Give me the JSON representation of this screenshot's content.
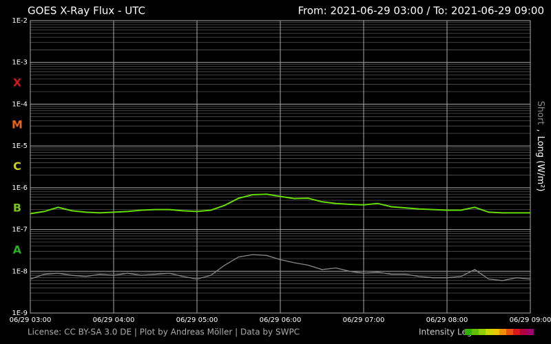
{
  "chart_data": {
    "type": "line",
    "title": "GOES X-Ray Flux - UTC",
    "subtitle": "From: 2021-06-29 03:00  /  To: 2021-06-29 09:00",
    "log_scale": true,
    "grid": true,
    "ylim": [
      1e-09,
      0.01
    ],
    "yticks": [
      {
        "value": 0.01,
        "label": "1E-2"
      },
      {
        "value": 0.001,
        "label": "1E-3"
      },
      {
        "value": 0.0001,
        "label": "1E-4"
      },
      {
        "value": 1e-05,
        "label": "1E-5"
      },
      {
        "value": 1e-06,
        "label": "1E-6"
      },
      {
        "value": 1e-07,
        "label": "1E-7"
      },
      {
        "value": 1e-08,
        "label": "1E-8"
      },
      {
        "value": 1e-09,
        "label": "1E-9"
      }
    ],
    "flare_classes": [
      {
        "label": "X",
        "color": "#d01818"
      },
      {
        "label": "M",
        "color": "#e8641a"
      },
      {
        "label": "C",
        "color": "#d0d020"
      },
      {
        "label": "B",
        "color": "#78c020"
      },
      {
        "label": "A",
        "color": "#28b028"
      }
    ],
    "xlim": [
      "06/29 03:00",
      "06/29 09:00"
    ],
    "xticks": [
      "06/29 03:00",
      "06/29 04:00",
      "06/29 05:00",
      "06/29 06:00",
      "06/29 07:00",
      "06/29 08:00",
      "06/29 09:00"
    ],
    "x": [
      "06/29 03:00",
      "06/29 03:10",
      "06/29 03:20",
      "06/29 03:30",
      "06/29 03:40",
      "06/29 03:50",
      "06/29 04:00",
      "06/29 04:10",
      "06/29 04:20",
      "06/29 04:30",
      "06/29 04:40",
      "06/29 04:50",
      "06/29 05:00",
      "06/29 05:10",
      "06/29 05:20",
      "06/29 05:30",
      "06/29 05:40",
      "06/29 05:50",
      "06/29 06:00",
      "06/29 06:10",
      "06/29 06:20",
      "06/29 06:30",
      "06/29 06:40",
      "06/29 06:50",
      "06/29 07:00",
      "06/29 07:10",
      "06/29 07:20",
      "06/29 07:30",
      "06/29 07:40",
      "06/29 07:50",
      "06/29 08:00",
      "06/29 08:10",
      "06/29 08:20",
      "06/29 08:30",
      "06/29 08:40",
      "06/29 08:50",
      "06/29 09:00"
    ],
    "series": [
      {
        "name": "Short",
        "color": "#8a8a8a",
        "values": [
          6.5e-09,
          8.5e-09,
          9e-09,
          8e-09,
          7.5e-09,
          8.5e-09,
          8e-09,
          9e-09,
          8e-09,
          8.5e-09,
          9e-09,
          7.5e-09,
          6.5e-09,
          8e-09,
          1.4e-08,
          2.2e-08,
          2.5e-08,
          2.4e-08,
          1.9e-08,
          1.6e-08,
          1.4e-08,
          1.1e-08,
          1.2e-08,
          1e-08,
          9e-09,
          9.5e-09,
          8.5e-09,
          8.5e-09,
          7.5e-09,
          7e-09,
          7e-09,
          7.5e-09,
          1.1e-08,
          6.5e-09,
          6e-09,
          7e-09,
          6.5e-09
        ]
      },
      {
        "name": "Long (W/m²)",
        "color": "#66dd00",
        "values": [
          2.4e-07,
          2.7e-07,
          3.4e-07,
          2.8e-07,
          2.6e-07,
          2.5e-07,
          2.6e-07,
          2.7e-07,
          2.9e-07,
          3e-07,
          3e-07,
          2.8e-07,
          2.7e-07,
          2.9e-07,
          3.8e-07,
          5.6e-07,
          6.8e-07,
          7e-07,
          6.2e-07,
          5.5e-07,
          5.6e-07,
          4.6e-07,
          4.2e-07,
          4e-07,
          3.9e-07,
          4.2e-07,
          3.5e-07,
          3.3e-07,
          3.1e-07,
          3e-07,
          2.9e-07,
          2.9e-07,
          3.4e-07,
          2.6e-07,
          2.5e-07,
          2.5e-07,
          2.5e-07
        ]
      }
    ],
    "legend_separator": ",",
    "footer": "License: CC BY-SA 3.0 DE | Plot by Andreas Möller | Data by SWPC",
    "intensity_label": "Intensity Leg",
    "intensity_colors": [
      "#30b000",
      "#60c000",
      "#90d000",
      "#c8d800",
      "#e8c800",
      "#f09000",
      "#e85010",
      "#d81818",
      "#b00040",
      "#a00070"
    ]
  }
}
